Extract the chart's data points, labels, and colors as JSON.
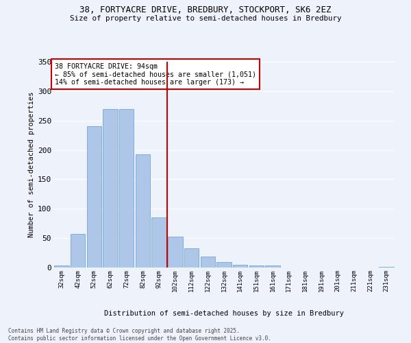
{
  "title1": "38, FORTYACRE DRIVE, BREDBURY, STOCKPORT, SK6 2EZ",
  "title2": "Size of property relative to semi-detached houses in Bredbury",
  "xlabel": "Distribution of semi-detached houses by size in Bredbury",
  "ylabel": "Number of semi-detached properties",
  "annotation_title": "38 FORTYACRE DRIVE: 94sqm",
  "annotation_line1": "← 85% of semi-detached houses are smaller (1,051)",
  "annotation_line2": "14% of semi-detached houses are larger (173) →",
  "footer1": "Contains HM Land Registry data © Crown copyright and database right 2025.",
  "footer2": "Contains public sector information licensed under the Open Government Licence v3.0.",
  "categories": [
    "32sqm",
    "42sqm",
    "52sqm",
    "62sqm",
    "72sqm",
    "82sqm",
    "92sqm",
    "102sqm",
    "112sqm",
    "122sqm",
    "132sqm",
    "141sqm",
    "151sqm",
    "161sqm",
    "171sqm",
    "181sqm",
    "191sqm",
    "201sqm",
    "211sqm",
    "221sqm",
    "231sqm"
  ],
  "values": [
    4,
    57,
    240,
    270,
    270,
    193,
    85,
    52,
    33,
    19,
    9,
    5,
    3,
    3,
    0,
    0,
    0,
    0,
    0,
    0,
    1
  ],
  "bar_color": "#aec6e8",
  "bar_edge_color": "#5b9bd5",
  "vline_x": 6.5,
  "vline_color": "#cc0000",
  "background_color": "#eef2fb",
  "grid_color": "#ffffff",
  "annotation_box_color": "#ffffff",
  "annotation_box_edge": "#cc0000",
  "ylim": [
    0,
    350
  ],
  "yticks": [
    0,
    50,
    100,
    150,
    200,
    250,
    300,
    350
  ]
}
